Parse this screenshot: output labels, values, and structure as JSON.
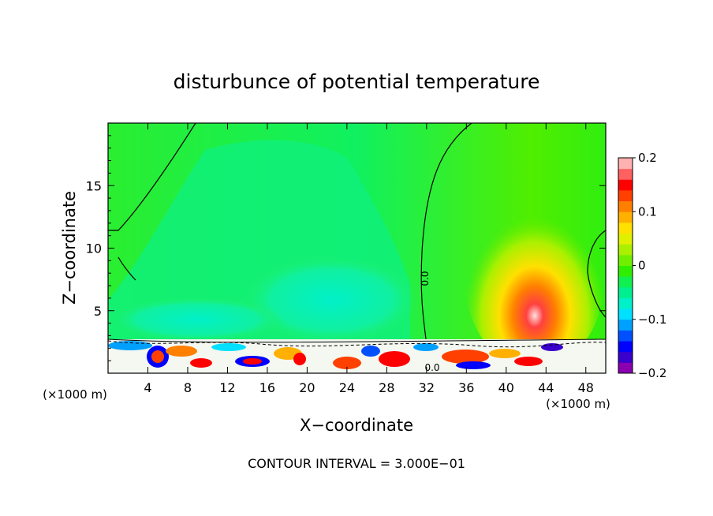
{
  "chart_data": {
    "type": "heatmap",
    "title": "disturbunce of potential temperature",
    "xlabel": "X−coordinate",
    "ylabel": "Z−coordinate",
    "x_unit_left": "(×1000 m)",
    "x_unit_right": "(×1000 m)",
    "xlim": [
      0,
      50
    ],
    "ylim": [
      0,
      20
    ],
    "x_ticks": [
      4,
      8,
      12,
      16,
      20,
      24,
      28,
      32,
      36,
      40,
      44,
      48
    ],
    "y_ticks": [
      5,
      10,
      15
    ],
    "footer": "CONTOUR INTERVAL = 3.000E−01",
    "contour_label": "0.0",
    "colorbar": {
      "min": -0.2,
      "max": 0.2,
      "tick_values": [
        0.2,
        0.1,
        0,
        -0.1,
        -0.2
      ],
      "tick_labels": [
        "0.2",
        "0.1",
        "0",
        "−0.1",
        "−0.2"
      ],
      "colors": [
        "#8a00b0",
        "#3a00cc",
        "#0000ff",
        "#0050ff",
        "#00a0ff",
        "#00e0ff",
        "#00f0c8",
        "#00f090",
        "#10f050",
        "#30ee00",
        "#70f000",
        "#aaf000",
        "#e0f000",
        "#ffe000",
        "#ffb000",
        "#ff8000",
        "#ff4000",
        "#ff0000",
        "#ff6060",
        "#ffb0b0"
      ]
    }
  }
}
